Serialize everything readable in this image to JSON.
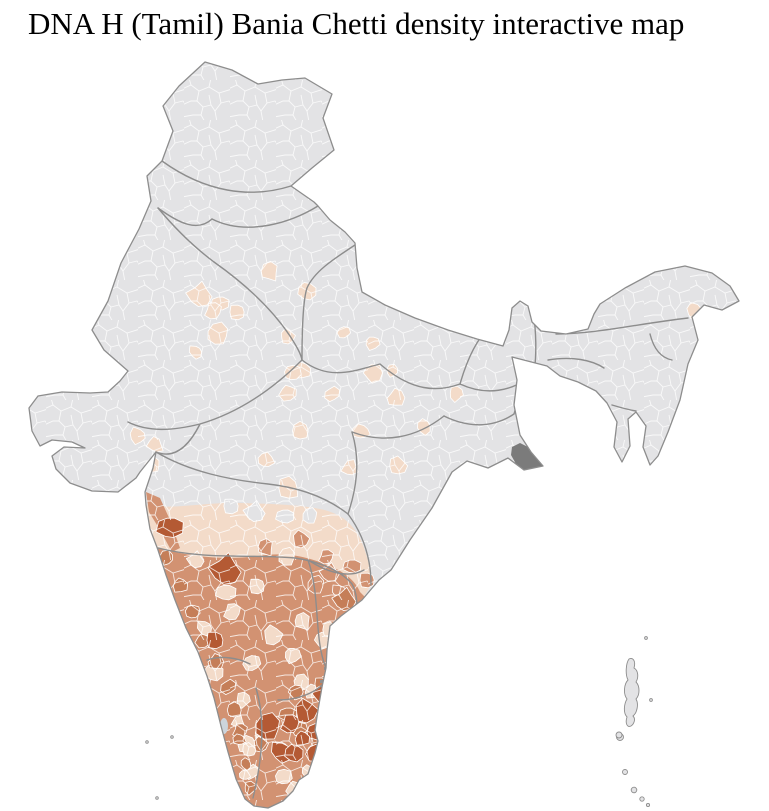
{
  "title": "DNA H (Tamil) Bania Chetti density interactive map",
  "map": {
    "type": "choropleth",
    "subject": "India district-level density",
    "background": "#ffffff",
    "title_color": "#000000",
    "colors": {
      "no_data": "#e3e3e5",
      "low": "#f3dbc9",
      "medium": "#d29272",
      "high": "#c57e58",
      "very_high": "#b45a34",
      "district_border": "#ffffff",
      "state_border": "#8d8d8d",
      "coast": "#8d8d8d",
      "marsh": "#7b7b7b",
      "water": "#ccd4dc",
      "city_marker": "#8f8f8f"
    },
    "density_levels": [
      {
        "level": "no data",
        "color": "#e3e3e5"
      },
      {
        "level": "low",
        "color": "#f3dbc9"
      },
      {
        "level": "medium",
        "color": "#d29272"
      },
      {
        "level": "high",
        "color": "#c57e58"
      },
      {
        "level": "very high",
        "color": "#b45a34"
      }
    ],
    "districts": {
      "none_pockets": [
        [
          255,
          512,
          10
        ],
        [
          285,
          516,
          8
        ],
        [
          232,
          506,
          8
        ],
        [
          310,
          516,
          7
        ]
      ],
      "low_north": [
        [
          200,
          295,
          12
        ],
        [
          220,
          303,
          8
        ],
        [
          238,
          312,
          8
        ],
        [
          218,
          334,
          10
        ],
        [
          196,
          352,
          7
        ],
        [
          213,
          311,
          8
        ],
        [
          287,
          337,
          7
        ],
        [
          269,
          272,
          9
        ],
        [
          307,
          291,
          8
        ],
        [
          344,
          333,
          6
        ],
        [
          372,
          342,
          7
        ],
        [
          372,
          373,
          9
        ],
        [
          392,
          371,
          6
        ],
        [
          302,
          370,
          8
        ],
        [
          292,
          373,
          8
        ],
        [
          288,
          392,
          8
        ],
        [
          395,
          398,
          8
        ],
        [
          332,
          394,
          7
        ],
        [
          300,
          431,
          8
        ],
        [
          362,
          432,
          8
        ],
        [
          424,
          427,
          8
        ],
        [
          456,
          394,
          7
        ],
        [
          350,
          468,
          8
        ],
        [
          398,
          466,
          8
        ],
        [
          265,
          460,
          9
        ],
        [
          289,
          488,
          10
        ],
        [
          138,
          436,
          8
        ],
        [
          155,
          445,
          8
        ],
        [
          153,
          465,
          7
        ],
        [
          694,
          312,
          8
        ]
      ],
      "low_south": [
        [
          196,
          560,
          8
        ],
        [
          226,
          592,
          9
        ],
        [
          258,
          586,
          8
        ],
        [
          287,
          557,
          8
        ],
        [
          205,
          628,
          8
        ],
        [
          232,
          612,
          8
        ],
        [
          272,
          636,
          9
        ],
        [
          302,
          622,
          8
        ],
        [
          214,
          672,
          8
        ],
        [
          252,
          664,
          8
        ],
        [
          292,
          654,
          8
        ],
        [
          322,
          640,
          8
        ],
        [
          301,
          683,
          8
        ],
        [
          312,
          691,
          7
        ],
        [
          283,
          777,
          8
        ],
        [
          295,
          788,
          8
        ],
        [
          246,
          745,
          8
        ],
        [
          251,
          772,
          7
        ],
        [
          262,
          733,
          7
        ],
        [
          322,
          768,
          7
        ],
        [
          308,
          772,
          7
        ],
        [
          243,
          700,
          7
        ],
        [
          238,
          722,
          6
        ],
        [
          249,
          750,
          6
        ],
        [
          244,
          775,
          6
        ],
        [
          330,
          630,
          7
        ],
        [
          345,
          652,
          7
        ]
      ],
      "medium_pockets": [
        [
          330,
          573,
          9
        ],
        [
          352,
          566,
          8
        ],
        [
          368,
          580,
          8
        ],
        [
          316,
          585,
          8
        ],
        [
          340,
          592,
          8
        ],
        [
          326,
          557,
          7
        ],
        [
          300,
          540,
          8
        ],
        [
          265,
          548,
          8
        ]
      ],
      "high": [
        [
          345,
          600,
          11
        ],
        [
          288,
          714,
          8
        ],
        [
          322,
          684,
          7
        ],
        [
          356,
          727,
          7
        ],
        [
          282,
          748,
          7
        ],
        [
          240,
          731,
          7
        ],
        [
          260,
          745,
          7
        ],
        [
          345,
          690,
          7
        ],
        [
          337,
          745,
          7
        ],
        [
          300,
          730,
          7
        ],
        [
          316,
          740,
          6
        ],
        [
          295,
          692,
          7
        ],
        [
          166,
          558,
          7
        ],
        [
          180,
          585,
          7
        ],
        [
          192,
          612,
          7
        ],
        [
          203,
          640,
          7
        ],
        [
          215,
          662,
          7
        ],
        [
          228,
          687,
          7
        ],
        [
          234,
          710,
          7
        ],
        [
          240,
          740,
          6
        ],
        [
          246,
          764,
          6
        ],
        [
          250,
          788,
          6
        ]
      ],
      "very_high": [
        [
          226,
          570,
          15
        ],
        [
          170,
          527,
          12
        ],
        [
          216,
          640,
          9
        ],
        [
          268,
          727,
          12
        ],
        [
          282,
          752,
          11
        ],
        [
          290,
          724,
          9
        ],
        [
          305,
          712,
          11
        ],
        [
          314,
          733,
          8
        ],
        [
          294,
          753,
          8
        ],
        [
          316,
          754,
          9
        ],
        [
          324,
          712,
          7
        ],
        [
          320,
          694,
          8
        ],
        [
          327,
          727,
          7
        ],
        [
          302,
          738,
          7
        ],
        [
          340,
          733,
          7
        ],
        [
          344,
          714,
          7
        ],
        [
          336,
          780,
          6
        ]
      ]
    },
    "islands": {
      "andaman_dots": [
        [
          620,
          737,
          3.5
        ],
        [
          646,
          638,
          1.4
        ],
        [
          651,
          700,
          1.4
        ],
        [
          619,
          735,
          3.0
        ],
        [
          625,
          772,
          2.5
        ],
        [
          634,
          790,
          2.8
        ],
        [
          642,
          799,
          2.2
        ],
        [
          648,
          805,
          1.6
        ]
      ],
      "lakshadweep_dots": [
        [
          147,
          742,
          1.3
        ],
        [
          172,
          737,
          1.3
        ],
        [
          157,
          798,
          1.3
        ]
      ]
    },
    "city_dots": [
      [
        325,
        668
      ],
      [
        321,
        681
      ]
    ]
  }
}
